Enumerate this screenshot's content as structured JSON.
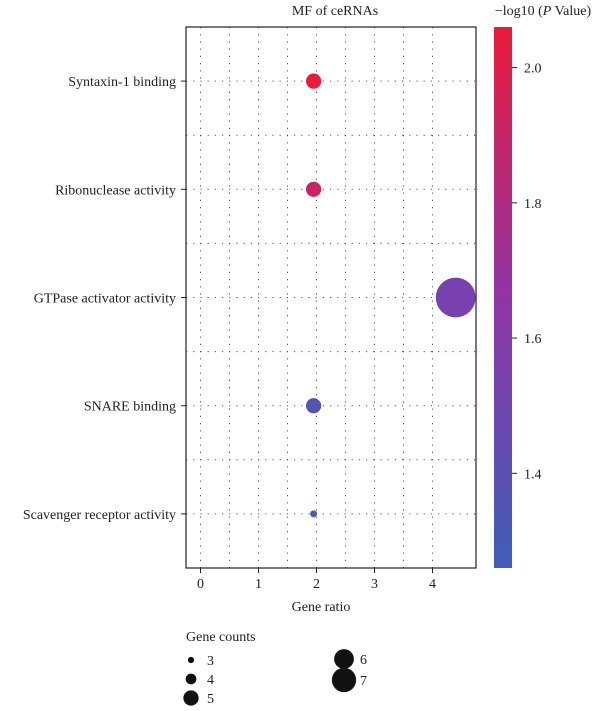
{
  "chart_data": {
    "type": "scatter",
    "title": "MF of ceRNAs",
    "xlabel": "Gene ratio",
    "ylabel": "",
    "xlim": [
      -0.25,
      4.75
    ],
    "x_ticks": [
      0,
      1,
      2,
      3,
      4
    ],
    "categories": [
      "Syntaxin-1 binding",
      "Ribonuclease activity",
      "GTPase activator activity",
      "SNARE binding",
      "Scavenger receptor activity"
    ],
    "points": [
      {
        "term": "Syntaxin-1 binding",
        "x": 1.95,
        "gene_count": 4,
        "neg_log10_p": 2.06
      },
      {
        "term": "Ribonuclease activity",
        "x": 1.95,
        "gene_count": 4,
        "neg_log10_p": 1.92
      },
      {
        "term": "GTPase activator activity",
        "x": 4.4,
        "gene_count": 7,
        "neg_log10_p": 1.54
      },
      {
        "term": "SNARE binding",
        "x": 1.95,
        "gene_count": 4,
        "neg_log10_p": 1.35
      },
      {
        "term": "Scavenger receptor activity",
        "x": 1.95,
        "gene_count": 3,
        "neg_log10_p": 1.32
      }
    ],
    "grid": true,
    "colorbar": {
      "title_prefix": "−log10 (",
      "title_italic": "P",
      "title_suffix": " Value)",
      "range": [
        1.26,
        2.06
      ],
      "ticks": [
        1.4,
        1.6,
        1.8,
        2.0
      ],
      "tick_labels": [
        "1.4",
        "1.6",
        "1.8",
        "2.0"
      ],
      "colors": [
        "#3f5fb8",
        "#9234a8",
        "#ea1a3a"
      ]
    },
    "size_legend": {
      "title": "Gene counts",
      "placement": "bottom-left",
      "entries": [
        {
          "value": 3,
          "label": "3"
        },
        {
          "value": 4,
          "label": "4"
        },
        {
          "value": 5,
          "label": "5"
        },
        {
          "value": 6,
          "label": "6"
        },
        {
          "value": 7,
          "label": "7"
        }
      ]
    }
  }
}
